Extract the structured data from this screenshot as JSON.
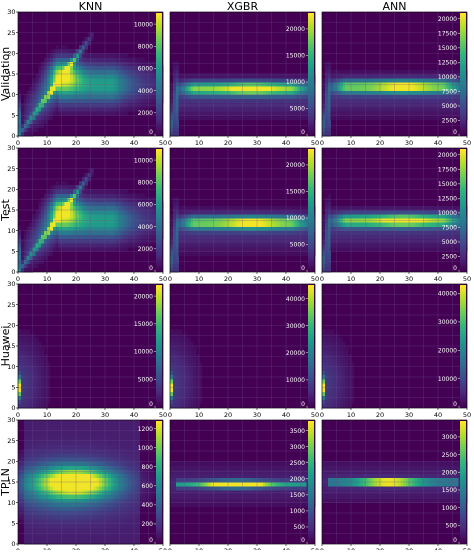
{
  "columns": [
    "KNN",
    "XGBR",
    "ANN"
  ],
  "rows": [
    "Validation",
    "Test",
    "Huawei",
    "TPLN"
  ],
  "colors": {
    "viridis": [
      "#440154",
      "#482878",
      "#3e4989",
      "#31688e",
      "#26828e",
      "#1f9e89",
      "#35b779",
      "#6ece58",
      "#b5de2b",
      "#fde725"
    ],
    "background": "#440154",
    "grid": "#6a4c8c",
    "tick_text": "#ffffff",
    "axis_text": "#000000"
  },
  "chart_data": {
    "type": "heatmap",
    "grid": true,
    "x_ticks": [
      0,
      10,
      20,
      30,
      40,
      50
    ],
    "y_ticks": [
      0,
      5,
      10,
      15,
      20,
      25,
      30
    ],
    "xlim": [
      0,
      50
    ],
    "ylim": [
      0,
      30
    ],
    "panels": [
      {
        "row": "Validation",
        "col": "KNN",
        "pattern": "knn",
        "colorbar_ticks": [
          0,
          2000,
          4000,
          6000,
          8000,
          10000
        ],
        "colorbar_max": 11000
      },
      {
        "row": "Validation",
        "col": "XGBR",
        "pattern": "band",
        "band_y": 11.5,
        "colorbar_ticks": [
          0,
          5000,
          10000,
          15000,
          20000
        ],
        "colorbar_max": 23000
      },
      {
        "row": "Validation",
        "col": "ANN",
        "pattern": "band",
        "band_y": 12.0,
        "colorbar_ticks": [
          0,
          2500,
          5000,
          7500,
          10000,
          12500,
          15000,
          17500,
          20000
        ],
        "colorbar_max": 21000
      },
      {
        "row": "Test",
        "col": "KNN",
        "pattern": "knn",
        "colorbar_ticks": [
          0,
          2000,
          4000,
          6000,
          8000,
          10000
        ],
        "colorbar_max": 11000
      },
      {
        "row": "Test",
        "col": "XGBR",
        "pattern": "band",
        "band_y": 12.0,
        "colorbar_ticks": [
          0,
          5000,
          10000,
          15000,
          20000
        ],
        "colorbar_max": 23000
      },
      {
        "row": "Test",
        "col": "ANN",
        "pattern": "band",
        "band_y": 12.5,
        "colorbar_ticks": [
          0,
          2500,
          5000,
          7500,
          10000,
          12500,
          15000,
          17500,
          20000
        ],
        "colorbar_max": 21000
      },
      {
        "row": "Huawei",
        "col": "KNN",
        "pattern": "spot",
        "colorbar_ticks": [
          0,
          5000,
          10000,
          15000,
          20000
        ],
        "colorbar_max": 22000
      },
      {
        "row": "Huawei",
        "col": "XGBR",
        "pattern": "spot",
        "colorbar_ticks": [
          0,
          10000,
          20000,
          30000,
          40000
        ],
        "colorbar_max": 45000
      },
      {
        "row": "Huawei",
        "col": "ANN",
        "pattern": "spot",
        "colorbar_ticks": [
          0,
          10000,
          20000,
          30000,
          40000
        ],
        "colorbar_max": 43000
      },
      {
        "row": "TPLN",
        "col": "KNN",
        "pattern": "blob",
        "colorbar_ticks": [
          0,
          200,
          400,
          600,
          800,
          1000,
          1200
        ],
        "colorbar_max": 1280
      },
      {
        "row": "TPLN",
        "col": "XGBR",
        "pattern": "thin",
        "band_y": 14.5,
        "colorbar_ticks": [
          0,
          500,
          1000,
          1500,
          2000,
          2500,
          3000,
          3500
        ],
        "colorbar_max": 3800
      },
      {
        "row": "TPLN",
        "col": "ANN",
        "pattern": "thin",
        "band_y": 15.0,
        "colorbar_ticks": [
          0,
          500,
          1000,
          1500,
          2000,
          2500,
          3000
        ],
        "colorbar_max": 3450
      }
    ]
  }
}
